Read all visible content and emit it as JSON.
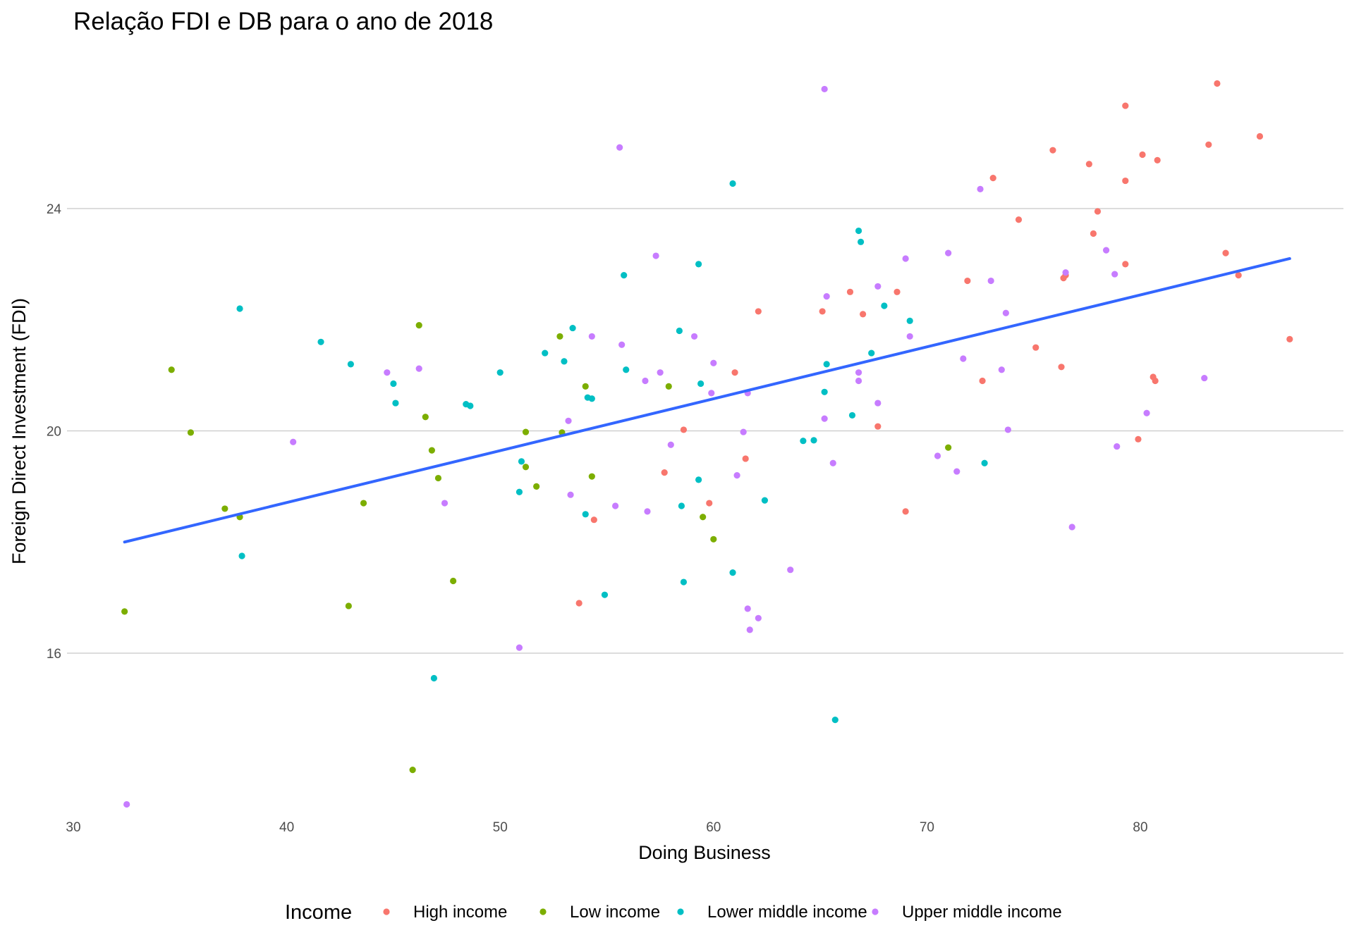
{
  "chart_data": {
    "type": "scatter",
    "title": "Relação FDI e DB para o ano de 2018",
    "xlabel": "Doing Business",
    "ylabel": "Foreign Direct Investment (FDI)",
    "xlim": [
      30,
      89
    ],
    "ylim": [
      13,
      27
    ],
    "x_ticks": [
      30,
      40,
      50,
      60,
      70,
      80
    ],
    "y_ticks": [
      16,
      20,
      24
    ],
    "grid": {
      "major_y": true,
      "major_x": false
    },
    "legend": {
      "title": "Income",
      "position": "bottom"
    },
    "trend_line": {
      "method": "linear",
      "x": [
        32.4,
        87.0
      ],
      "y": [
        18.0,
        23.1
      ],
      "color": "#3366ff"
    },
    "series": [
      {
        "name": "High income",
        "color": "#f8766d",
        "points": [
          [
            83.6,
            26.25
          ],
          [
            79.3,
            25.85
          ],
          [
            85.6,
            25.3
          ],
          [
            83.2,
            25.15
          ],
          [
            75.9,
            25.05
          ],
          [
            80.1,
            24.97
          ],
          [
            80.8,
            24.87
          ],
          [
            77.6,
            24.8
          ],
          [
            73.1,
            24.55
          ],
          [
            79.3,
            24.5
          ],
          [
            78.0,
            23.95
          ],
          [
            74.3,
            23.8
          ],
          [
            77.8,
            23.55
          ],
          [
            84.0,
            23.2
          ],
          [
            79.3,
            23.0
          ],
          [
            76.5,
            22.8
          ],
          [
            84.6,
            22.8
          ],
          [
            76.4,
            22.75
          ],
          [
            71.9,
            22.7
          ],
          [
            66.4,
            22.5
          ],
          [
            68.6,
            22.5
          ],
          [
            62.1,
            22.15
          ],
          [
            65.1,
            22.15
          ],
          [
            67.0,
            22.1
          ],
          [
            87.0,
            21.65
          ],
          [
            75.1,
            21.5
          ],
          [
            76.3,
            21.15
          ],
          [
            61.0,
            21.05
          ],
          [
            80.6,
            20.97
          ],
          [
            72.6,
            20.9
          ],
          [
            80.7,
            20.9
          ],
          [
            58.6,
            20.02
          ],
          [
            67.7,
            20.08
          ],
          [
            79.9,
            19.85
          ],
          [
            61.5,
            19.5
          ],
          [
            57.7,
            19.25
          ],
          [
            59.8,
            18.7
          ],
          [
            69.0,
            18.55
          ],
          [
            54.4,
            18.4
          ],
          [
            53.7,
            16.9
          ]
        ]
      },
      {
        "name": "Low income",
        "color": "#7cae00",
        "points": [
          [
            46.2,
            21.9
          ],
          [
            52.8,
            21.7
          ],
          [
            34.6,
            21.1
          ],
          [
            54.0,
            20.8
          ],
          [
            57.9,
            20.8
          ],
          [
            46.5,
            20.25
          ],
          [
            35.5,
            19.97
          ],
          [
            51.2,
            19.98
          ],
          [
            52.9,
            19.97
          ],
          [
            46.8,
            19.65
          ],
          [
            71.0,
            19.7
          ],
          [
            51.2,
            19.35
          ],
          [
            47.1,
            19.15
          ],
          [
            54.3,
            19.18
          ],
          [
            51.7,
            19.0
          ],
          [
            43.6,
            18.7
          ],
          [
            37.1,
            18.6
          ],
          [
            37.8,
            18.45
          ],
          [
            59.5,
            18.45
          ],
          [
            60.0,
            18.05
          ],
          [
            47.8,
            17.3
          ],
          [
            32.4,
            16.75
          ],
          [
            42.9,
            16.85
          ],
          [
            45.9,
            13.9
          ]
        ]
      },
      {
        "name": "Lower middle income",
        "color": "#00bfc4",
        "points": [
          [
            60.9,
            24.45
          ],
          [
            66.8,
            23.6
          ],
          [
            66.9,
            23.4
          ],
          [
            59.3,
            23.0
          ],
          [
            55.8,
            22.8
          ],
          [
            37.8,
            22.2
          ],
          [
            68.0,
            22.25
          ],
          [
            69.2,
            21.98
          ],
          [
            53.4,
            21.85
          ],
          [
            58.4,
            21.8
          ],
          [
            41.6,
            21.6
          ],
          [
            52.1,
            21.4
          ],
          [
            67.4,
            21.4
          ],
          [
            53.0,
            21.25
          ],
          [
            43.0,
            21.2
          ],
          [
            65.3,
            21.2
          ],
          [
            55.9,
            21.1
          ],
          [
            50.0,
            21.05
          ],
          [
            45.0,
            20.85
          ],
          [
            59.4,
            20.85
          ],
          [
            65.2,
            20.7
          ],
          [
            54.1,
            20.6
          ],
          [
            54.3,
            20.58
          ],
          [
            45.1,
            20.5
          ],
          [
            48.4,
            20.48
          ],
          [
            48.6,
            20.45
          ],
          [
            66.5,
            20.28
          ],
          [
            64.2,
            19.82
          ],
          [
            64.7,
            19.83
          ],
          [
            51.0,
            19.45
          ],
          [
            72.7,
            19.42
          ],
          [
            59.3,
            19.12
          ],
          [
            50.9,
            18.9
          ],
          [
            62.4,
            18.75
          ],
          [
            58.5,
            18.65
          ],
          [
            54.0,
            18.5
          ],
          [
            60.9,
            17.45
          ],
          [
            58.6,
            17.28
          ],
          [
            54.9,
            17.05
          ],
          [
            37.9,
            17.75
          ],
          [
            46.9,
            15.55
          ],
          [
            65.7,
            14.8
          ]
        ]
      },
      {
        "name": "Upper middle income",
        "color": "#c77cff",
        "points": [
          [
            65.2,
            26.15
          ],
          [
            55.6,
            25.1
          ],
          [
            72.5,
            24.35
          ],
          [
            57.3,
            23.15
          ],
          [
            71.0,
            23.2
          ],
          [
            78.4,
            23.25
          ],
          [
            69.0,
            23.1
          ],
          [
            76.5,
            22.85
          ],
          [
            78.8,
            22.82
          ],
          [
            73.0,
            22.7
          ],
          [
            67.7,
            22.6
          ],
          [
            65.3,
            22.42
          ],
          [
            73.7,
            22.12
          ],
          [
            59.1,
            21.7
          ],
          [
            54.3,
            21.7
          ],
          [
            69.2,
            21.7
          ],
          [
            55.7,
            21.55
          ],
          [
            71.7,
            21.3
          ],
          [
            60.0,
            21.22
          ],
          [
            46.2,
            21.12
          ],
          [
            73.5,
            21.1
          ],
          [
            57.5,
            21.05
          ],
          [
            44.7,
            21.05
          ],
          [
            66.8,
            21.05
          ],
          [
            83.0,
            20.95
          ],
          [
            56.8,
            20.9
          ],
          [
            66.8,
            20.9
          ],
          [
            59.9,
            20.68
          ],
          [
            61.6,
            20.68
          ],
          [
            67.7,
            20.5
          ],
          [
            80.3,
            20.32
          ],
          [
            53.2,
            20.18
          ],
          [
            65.2,
            20.22
          ],
          [
            73.8,
            20.02
          ],
          [
            61.4,
            19.98
          ],
          [
            40.3,
            19.8
          ],
          [
            58.0,
            19.75
          ],
          [
            78.9,
            19.72
          ],
          [
            70.5,
            19.55
          ],
          [
            65.6,
            19.42
          ],
          [
            71.4,
            19.27
          ],
          [
            61.1,
            19.2
          ],
          [
            53.3,
            18.85
          ],
          [
            47.4,
            18.7
          ],
          [
            55.4,
            18.65
          ],
          [
            56.9,
            18.55
          ],
          [
            76.8,
            18.27
          ],
          [
            63.6,
            17.5
          ],
          [
            61.6,
            16.8
          ],
          [
            62.1,
            16.63
          ],
          [
            61.7,
            16.42
          ],
          [
            50.9,
            16.1
          ],
          [
            32.5,
            13.28
          ]
        ]
      }
    ]
  }
}
